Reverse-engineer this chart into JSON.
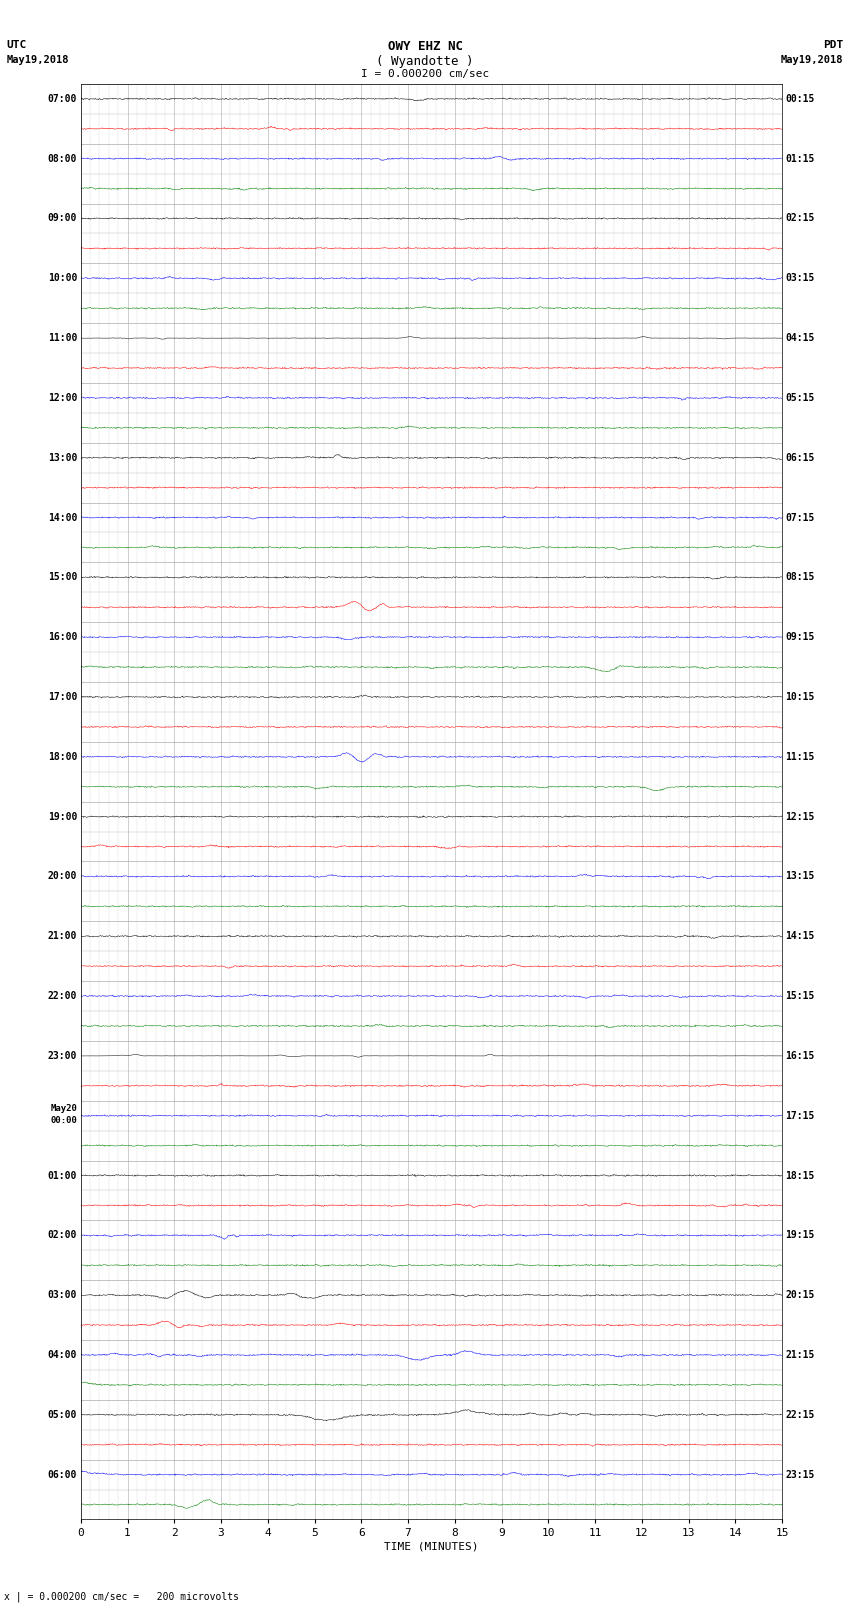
{
  "title_line1": "OWY EHZ NC",
  "title_line2": "( Wyandotte )",
  "scale_label": "I = 0.000200 cm/sec",
  "footer_note": "x | = 0.000200 cm/sec =   200 microvolts",
  "xlabel": "TIME (MINUTES)",
  "xlim": [
    0,
    15
  ],
  "xticks": [
    0,
    1,
    2,
    3,
    4,
    5,
    6,
    7,
    8,
    9,
    10,
    11,
    12,
    13,
    14,
    15
  ],
  "num_rows": 48,
  "bg_color": "#ffffff",
  "grid_major_color": "#aaaaaa",
  "grid_minor_color": "#cccccc",
  "left_times": [
    "07:00",
    "",
    "08:00",
    "",
    "09:00",
    "",
    "10:00",
    "",
    "11:00",
    "",
    "12:00",
    "",
    "13:00",
    "",
    "14:00",
    "",
    "15:00",
    "",
    "16:00",
    "",
    "17:00",
    "",
    "18:00",
    "",
    "19:00",
    "",
    "20:00",
    "",
    "21:00",
    "",
    "22:00",
    "",
    "23:00",
    "",
    "May20\n00:00",
    "",
    "01:00",
    "",
    "02:00",
    "",
    "03:00",
    "",
    "04:00",
    "",
    "05:00",
    "",
    "06:00",
    ""
  ],
  "right_times": [
    "00:15",
    "",
    "01:15",
    "",
    "02:15",
    "",
    "03:15",
    "",
    "04:15",
    "",
    "05:15",
    "",
    "06:15",
    "",
    "07:15",
    "",
    "08:15",
    "",
    "09:15",
    "",
    "10:15",
    "",
    "11:15",
    "",
    "12:15",
    "",
    "13:15",
    "",
    "14:15",
    "",
    "15:15",
    "",
    "16:15",
    "",
    "17:15",
    "",
    "18:15",
    "",
    "19:15",
    "",
    "20:15",
    "",
    "21:15",
    "",
    "22:15",
    "",
    "23:15",
    ""
  ],
  "fig_width": 8.5,
  "fig_height": 16.13,
  "dpi": 100
}
